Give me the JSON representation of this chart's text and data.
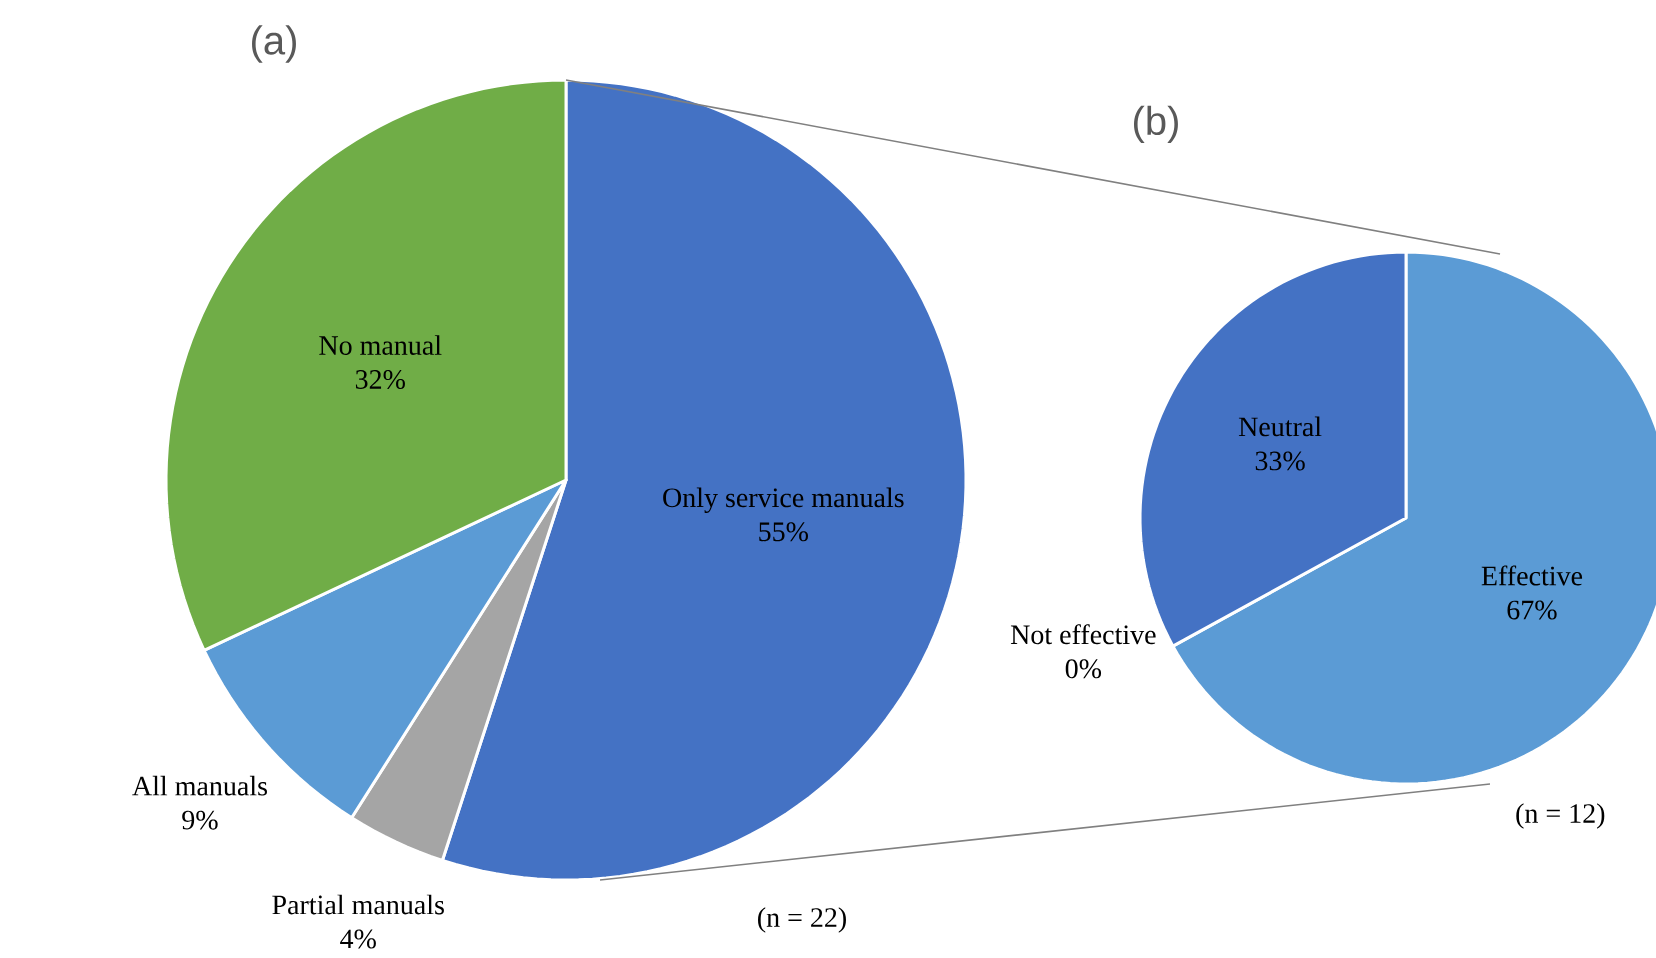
{
  "chart_data": [
    {
      "type": "pie",
      "title": "(a)",
      "categories": [
        "Only service manuals",
        "Partial manuals",
        "All manuals",
        "No manual"
      ],
      "values": [
        55,
        4,
        9,
        32
      ],
      "colors": [
        "#4472c4",
        "#a5a5a5",
        "#5b9bd5",
        "#70ad47"
      ],
      "value_labels": [
        "55%",
        "4%",
        "9%",
        "32%"
      ],
      "annotations": [
        "(n = 22)"
      ]
    },
    {
      "type": "pie",
      "title": "(b)",
      "categories": [
        "Effective",
        "Not effective",
        "Neutral"
      ],
      "values": [
        67,
        0,
        33
      ],
      "colors": [
        "#5b9bd5",
        "#a5a5a5",
        "#4472c4"
      ],
      "value_labels": [
        "67%",
        "0%",
        "33%"
      ],
      "annotations": [
        "(n = 12)"
      ]
    }
  ]
}
